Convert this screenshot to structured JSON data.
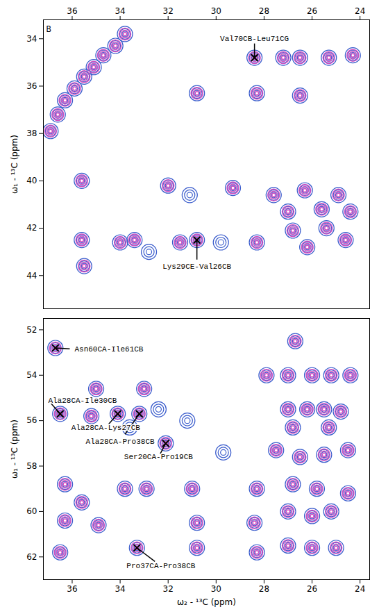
{
  "chart_data": [
    {
      "type": "scatter",
      "panel_label": "B",
      "ylabel": "ω₁ - ¹³C (ppm)",
      "xlim": [
        37.2,
        23.6
      ],
      "xticks": [
        36,
        34,
        32,
        30,
        28,
        26,
        24
      ],
      "ylim": [
        45.4,
        33.2
      ],
      "yticks": [
        34,
        36,
        38,
        40,
        42,
        44
      ],
      "series": [
        {
          "color": "#3a5ccc",
          "marker": "contour",
          "x": [
            36.9,
            36.6,
            36.3,
            35.9,
            35.5,
            35.1,
            34.7,
            34.2,
            33.8,
            35.6,
            35.6,
            35.5,
            34.0,
            33.4,
            32.0,
            31.5,
            30.8,
            30.8,
            29.3,
            28.4,
            28.3,
            28.3,
            27.2,
            26.5,
            26.5,
            25.3,
            24.3,
            27.6,
            26.3,
            24.9,
            27.0,
            25.6,
            24.4,
            26.8,
            25.4,
            26.2,
            24.6,
            32.8,
            31.1,
            29.8
          ],
          "values": [
            37.9,
            37.2,
            36.6,
            36.1,
            35.6,
            35.2,
            34.7,
            34.3,
            33.8,
            40.0,
            42.5,
            43.6,
            42.6,
            42.5,
            40.2,
            42.6,
            42.5,
            36.3,
            40.3,
            34.8,
            36.3,
            42.6,
            34.8,
            34.8,
            36.4,
            34.8,
            34.7,
            40.6,
            40.4,
            40.6,
            41.3,
            41.2,
            41.3,
            42.1,
            42.0,
            42.8,
            42.5,
            43.0,
            40.6,
            42.6
          ]
        },
        {
          "color": "#d24fc3",
          "marker": "contour",
          "x": [
            36.9,
            36.6,
            36.3,
            35.9,
            35.5,
            35.1,
            34.7,
            34.2,
            33.8,
            35.6,
            35.6,
            35.5,
            34.0,
            33.4,
            32.0,
            31.5,
            30.8,
            30.8,
            29.3,
            28.4,
            28.3,
            28.3,
            27.2,
            26.5,
            26.5,
            25.3,
            24.3,
            27.6,
            26.3,
            24.9,
            27.0,
            25.6,
            24.4,
            26.8,
            25.4,
            26.2,
            24.6
          ],
          "values": [
            37.9,
            37.2,
            36.6,
            36.1,
            35.6,
            35.2,
            34.7,
            34.3,
            33.8,
            40.0,
            42.5,
            43.6,
            42.6,
            42.5,
            40.2,
            42.6,
            42.5,
            36.3,
            40.3,
            34.8,
            36.3,
            42.6,
            34.8,
            34.8,
            36.4,
            34.8,
            34.7,
            40.6,
            40.4,
            40.6,
            41.3,
            41.2,
            41.3,
            42.1,
            42.0,
            42.8,
            42.5
          ]
        }
      ],
      "annotations": [
        {
          "text": "Val70CB-Leu71CG",
          "x": 28.4,
          "y": 34.8
        },
        {
          "text": "Lys29CE-Val26CB",
          "x": 30.8,
          "y": 42.5
        }
      ]
    },
    {
      "type": "scatter",
      "xlabel": "ω₂ - ¹³C (ppm)",
      "ylabel": "ω₁ - ¹³C (ppm)",
      "xlim": [
        37.2,
        23.6
      ],
      "xticks": [
        36,
        34,
        32,
        30,
        28,
        26,
        24
      ],
      "ylim": [
        63.0,
        51.5
      ],
      "yticks": [
        52,
        54,
        56,
        58,
        60,
        62
      ],
      "series": [
        {
          "color": "#3a5ccc",
          "marker": "contour",
          "x": [
            36.7,
            36.5,
            35.0,
            35.2,
            34.1,
            33.2,
            32.1,
            33.0,
            36.3,
            35.6,
            36.3,
            36.5,
            34.9,
            33.3,
            33.8,
            32.9,
            31.0,
            30.8,
            30.8,
            28.3,
            28.4,
            28.3,
            26.7,
            27.9,
            27.0,
            26.0,
            25.2,
            24.4,
            27.0,
            26.2,
            25.5,
            24.8,
            26.8,
            25.3,
            27.5,
            26.5,
            25.5,
            24.5,
            26.8,
            25.8,
            27.0,
            26.0,
            25.2,
            24.5,
            27.0,
            26.0,
            25.0,
            31.2,
            33.6,
            32.4,
            29.7
          ],
          "values": [
            52.8,
            55.7,
            54.6,
            55.8,
            55.7,
            55.7,
            57.0,
            54.6,
            58.8,
            59.6,
            60.4,
            61.8,
            60.6,
            61.6,
            59.0,
            59.0,
            59.0,
            60.5,
            61.6,
            59.0,
            60.5,
            61.8,
            52.5,
            54.0,
            54.0,
            54.0,
            54.0,
            54.0,
            55.5,
            55.5,
            55.5,
            55.6,
            56.3,
            56.3,
            57.3,
            57.6,
            57.5,
            57.3,
            58.8,
            59.0,
            60.0,
            60.2,
            60.0,
            59.2,
            61.5,
            61.6,
            61.6,
            56.0,
            56.3,
            55.5,
            57.4
          ]
        },
        {
          "color": "#d24fc3",
          "marker": "contour",
          "x": [
            36.7,
            36.5,
            35.0,
            35.2,
            34.1,
            33.2,
            32.1,
            33.0,
            36.3,
            35.6,
            36.3,
            36.5,
            34.9,
            33.3,
            33.8,
            32.9,
            31.0,
            30.8,
            30.8,
            28.3,
            28.4,
            28.3,
            26.7,
            27.9,
            27.0,
            26.0,
            25.2,
            24.4,
            27.0,
            26.2,
            25.5,
            24.8,
            26.8,
            25.3,
            27.5,
            26.5,
            25.5,
            24.5,
            26.8,
            25.8,
            27.0,
            26.0,
            25.2,
            24.5,
            27.0,
            26.0,
            25.0
          ],
          "values": [
            52.8,
            55.7,
            54.6,
            55.8,
            55.7,
            55.7,
            57.0,
            54.6,
            58.8,
            59.6,
            60.4,
            61.8,
            60.6,
            61.6,
            59.0,
            59.0,
            59.0,
            60.5,
            61.6,
            59.0,
            60.5,
            61.8,
            52.5,
            54.0,
            54.0,
            54.0,
            54.0,
            54.0,
            55.5,
            55.5,
            55.5,
            55.6,
            56.3,
            56.3,
            57.3,
            57.6,
            57.5,
            57.3,
            58.8,
            59.0,
            60.0,
            60.2,
            60.0,
            59.2,
            61.5,
            61.6,
            61.6
          ]
        }
      ],
      "annotations": [
        {
          "text": "Asn60CA-Ile61CB",
          "x": 36.7,
          "y": 52.8
        },
        {
          "text": "Ala28CA-Ile30CB",
          "x": 36.5,
          "y": 55.7
        },
        {
          "text": "Ala28CA-Lys27CB",
          "x": 34.1,
          "y": 55.7
        },
        {
          "text": "Ala28CA-Pro38CB",
          "x": 33.2,
          "y": 55.7
        },
        {
          "text": "Ser20CA-Pro19CB",
          "x": 32.1,
          "y": 57.0
        },
        {
          "text": "Pro37CA-Pro38CB",
          "x": 33.3,
          "y": 61.6
        }
      ]
    }
  ]
}
